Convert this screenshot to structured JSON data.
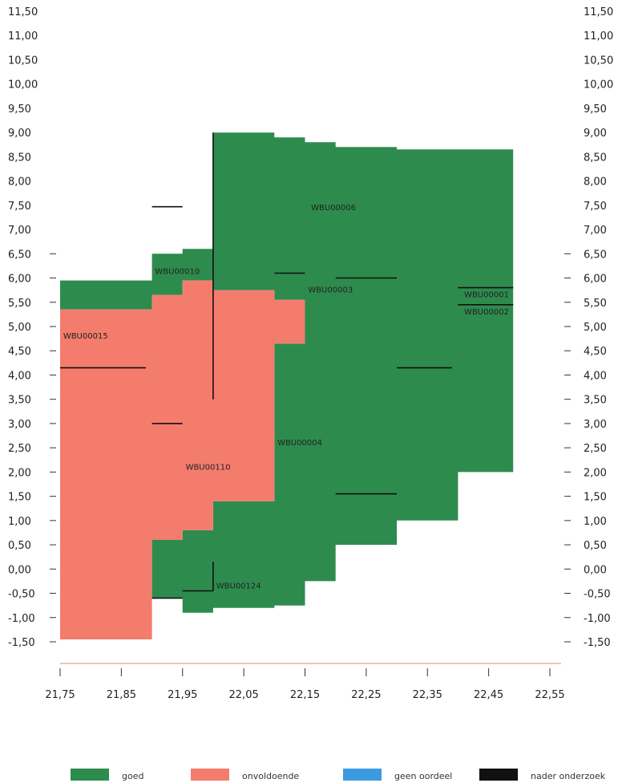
{
  "chart_data": {
    "type": "area",
    "x_ticks": [
      "21,75",
      "21,85",
      "21,95",
      "22,05",
      "22,15",
      "22,25",
      "22,35",
      "22,45",
      "22,55"
    ],
    "y_ticks": [
      "11,50",
      "11,00",
      "10,50",
      "10,00",
      "9,50",
      "9,00",
      "8,50",
      "8,00",
      "7,50",
      "7,00",
      "6,50",
      "6,00",
      "5,50",
      "5,00",
      "4,50",
      "4,00",
      "3,50",
      "3,00",
      "2,50",
      "2,00",
      "1,50",
      "1,00",
      "0,50",
      "0,00",
      "-0,50",
      "-1,00",
      "-1,50"
    ],
    "xlim": [
      21.75,
      22.55
    ],
    "ylim": [
      -1.5,
      11.5
    ],
    "colors": {
      "goed": "#2e8b4e",
      "onvoldoende": "#f47c6c",
      "geen_oordeel": "#3a9be0",
      "nader_onderzoek": "#111111"
    },
    "regions": [
      {
        "category": "goed",
        "label": "WBU00124",
        "points": [
          [
            21.9,
            -0.6
          ],
          [
            21.9,
            0.6
          ],
          [
            21.95,
            0.6
          ],
          [
            21.95,
            0.8
          ],
          [
            22.0,
            0.8
          ],
          [
            22.0,
            1.4
          ],
          [
            22.1,
            1.4
          ],
          [
            22.1,
            4.65
          ],
          [
            22.15,
            4.65
          ],
          [
            22.15,
            5.55
          ],
          [
            22.1,
            5.55
          ],
          [
            22.1,
            5.75
          ],
          [
            22.0,
            5.75
          ],
          [
            22.0,
            9.0
          ],
          [
            22.1,
            9.0
          ],
          [
            22.1,
            8.9
          ],
          [
            22.15,
            8.9
          ],
          [
            22.15,
            8.8
          ],
          [
            22.2,
            8.8
          ],
          [
            22.2,
            8.7
          ],
          [
            22.3,
            8.7
          ],
          [
            22.3,
            8.65
          ],
          [
            22.49,
            8.65
          ],
          [
            22.49,
            2.0
          ],
          [
            22.4,
            2.0
          ],
          [
            22.4,
            1.0
          ],
          [
            22.3,
            1.0
          ],
          [
            22.3,
            0.5
          ],
          [
            22.2,
            0.5
          ],
          [
            22.2,
            -0.25
          ],
          [
            22.15,
            -0.25
          ],
          [
            22.15,
            -0.75
          ],
          [
            22.1,
            -0.75
          ],
          [
            22.1,
            -0.8
          ],
          [
            22.0,
            -0.8
          ],
          [
            22.0,
            -0.9
          ],
          [
            21.95,
            -0.9
          ],
          [
            21.95,
            -0.6
          ]
        ]
      },
      {
        "category": "goed",
        "label": "WBU00015",
        "points": [
          [
            21.75,
            5.35
          ],
          [
            21.75,
            5.95
          ],
          [
            21.9,
            5.95
          ],
          [
            21.9,
            6.5
          ],
          [
            21.95,
            6.5
          ],
          [
            21.95,
            6.6
          ],
          [
            22.0,
            6.6
          ],
          [
            22.0,
            5.95
          ],
          [
            21.95,
            5.95
          ],
          [
            21.95,
            5.65
          ],
          [
            21.9,
            5.65
          ],
          [
            21.9,
            5.35
          ]
        ]
      },
      {
        "category": "onvoldoende",
        "label": "WBU00110",
        "points": [
          [
            21.75,
            -1.45
          ],
          [
            21.9,
            -1.45
          ],
          [
            21.9,
            0.6
          ],
          [
            21.95,
            0.6
          ],
          [
            21.95,
            0.8
          ],
          [
            22.0,
            0.8
          ],
          [
            22.0,
            1.4
          ],
          [
            22.1,
            1.4
          ],
          [
            22.1,
            4.65
          ],
          [
            22.15,
            4.65
          ],
          [
            22.15,
            5.55
          ],
          [
            22.1,
            5.55
          ],
          [
            22.1,
            5.75
          ],
          [
            22.0,
            5.75
          ],
          [
            22.0,
            5.95
          ],
          [
            21.95,
            5.95
          ],
          [
            21.95,
            5.65
          ],
          [
            21.9,
            5.65
          ],
          [
            21.9,
            5.35
          ],
          [
            21.75,
            5.35
          ]
        ]
      }
    ],
    "lines": [
      {
        "category": "nader_onderzoek",
        "points": [
          [
            21.75,
            4.15
          ],
          [
            21.89,
            4.15
          ]
        ]
      },
      {
        "category": "nader_onderzoek",
        "points": [
          [
            21.9,
            7.47
          ],
          [
            21.95,
            7.47
          ]
        ]
      },
      {
        "category": "nader_onderzoek",
        "points": [
          [
            21.9,
            3.0
          ],
          [
            21.95,
            3.0
          ]
        ]
      },
      {
        "category": "nader_onderzoek",
        "points": [
          [
            22.0,
            3.5
          ],
          [
            22.0,
            9.0
          ]
        ]
      },
      {
        "category": "nader_onderzoek",
        "points": [
          [
            22.1,
            6.1
          ],
          [
            22.15,
            6.1
          ]
        ]
      },
      {
        "category": "nader_onderzoek",
        "points": [
          [
            22.2,
            6.0
          ],
          [
            22.3,
            6.0
          ]
        ]
      },
      {
        "category": "nader_onderzoek",
        "points": [
          [
            22.3,
            4.15
          ],
          [
            22.39,
            4.15
          ]
        ]
      },
      {
        "category": "nader_onderzoek",
        "points": [
          [
            22.2,
            1.55
          ],
          [
            22.3,
            1.55
          ]
        ]
      },
      {
        "category": "nader_onderzoek",
        "points": [
          [
            22.4,
            5.8
          ],
          [
            22.49,
            5.8
          ]
        ]
      },
      {
        "category": "nader_onderzoek",
        "points": [
          [
            22.4,
            5.45
          ],
          [
            22.49,
            5.45
          ]
        ]
      },
      {
        "category": "nader_onderzoek",
        "points": [
          [
            21.95,
            -0.45
          ],
          [
            22.0,
            -0.45
          ]
        ]
      },
      {
        "category": "nader_onderzoek",
        "points": [
          [
            22.0,
            -0.45
          ],
          [
            22.0,
            0.15
          ]
        ]
      },
      {
        "category": "nader_onderzoek",
        "points": [
          [
            21.9,
            -0.6
          ],
          [
            21.95,
            -0.6
          ]
        ]
      }
    ],
    "annotations": [
      {
        "text": "WBU00006",
        "x": 22.16,
        "y": 7.4
      },
      {
        "text": "WBU00015",
        "x": 21.755,
        "y": 4.75
      },
      {
        "text": "WBU00010",
        "x": 21.905,
        "y": 6.08
      },
      {
        "text": "WBU00003",
        "x": 22.155,
        "y": 5.7
      },
      {
        "text": "WBU00004",
        "x": 22.105,
        "y": 2.55
      },
      {
        "text": "WBU00110",
        "x": 21.955,
        "y": 2.05
      },
      {
        "text": "WBU00124",
        "x": 22.005,
        "y": -0.4
      },
      {
        "text": "WBU00001",
        "x": 22.41,
        "y": 5.6
      },
      {
        "text": "WBU00002",
        "x": 22.41,
        "y": 5.25
      }
    ],
    "legend": [
      {
        "category": "goed",
        "label": "goed"
      },
      {
        "category": "onvoldoende",
        "label": "onvoldoende"
      },
      {
        "category": "geen_oordeel",
        "label": "geen oordeel"
      },
      {
        "category": "nader_onderzoek",
        "label": "nader onderzoek"
      }
    ],
    "legend_position": "bottom"
  }
}
